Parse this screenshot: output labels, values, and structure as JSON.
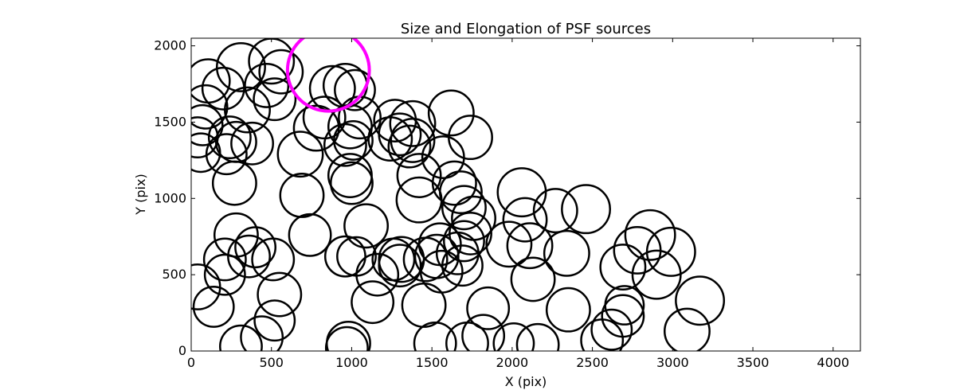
{
  "chart_data": {
    "type": "scatter",
    "title": "Size and Elongation of PSF sources",
    "xlabel": "X (pix)",
    "ylabel": "Y (pix)",
    "xlim": [
      0,
      4170
    ],
    "ylim": [
      0,
      2050
    ],
    "xticks": [
      0,
      500,
      1000,
      1500,
      2000,
      2500,
      3000,
      3500,
      4000
    ],
    "yticks": [
      0,
      500,
      1000,
      1500,
      2000
    ],
    "grid": false,
    "marker": "circle",
    "marker_color": "#000000",
    "highlight_color": "#ff00ff",
    "highlight": {
      "x": 855,
      "y": 1840,
      "radius": 255
    },
    "sources": [
      {
        "x": 105,
        "y": 1770,
        "r": 135
      },
      {
        "x": 310,
        "y": 1860,
        "r": 150
      },
      {
        "x": 500,
        "y": 1900,
        "r": 140
      },
      {
        "x": 560,
        "y": 1830,
        "r": 135
      },
      {
        "x": 200,
        "y": 1720,
        "r": 130
      },
      {
        "x": 470,
        "y": 1740,
        "r": 135
      },
      {
        "x": 520,
        "y": 1650,
        "r": 130
      },
      {
        "x": 350,
        "y": 1580,
        "r": 140
      },
      {
        "x": 90,
        "y": 1600,
        "r": 135
      },
      {
        "x": 40,
        "y": 1400,
        "r": 125
      },
      {
        "x": 60,
        "y": 1300,
        "r": 120
      },
      {
        "x": 70,
        "y": 1480,
        "r": 125
      },
      {
        "x": 240,
        "y": 1400,
        "r": 130
      },
      {
        "x": 280,
        "y": 1370,
        "r": 125
      },
      {
        "x": 380,
        "y": 1360,
        "r": 130
      },
      {
        "x": 220,
        "y": 1290,
        "r": 125
      },
      {
        "x": 270,
        "y": 1100,
        "r": 135
      },
      {
        "x": 680,
        "y": 1290,
        "r": 140
      },
      {
        "x": 690,
        "y": 1020,
        "r": 135
      },
      {
        "x": 740,
        "y": 760,
        "r": 130
      },
      {
        "x": 780,
        "y": 1460,
        "r": 140
      },
      {
        "x": 830,
        "y": 1530,
        "r": 130
      },
      {
        "x": 880,
        "y": 1720,
        "r": 140
      },
      {
        "x": 960,
        "y": 1740,
        "r": 135
      },
      {
        "x": 1020,
        "y": 1710,
        "r": 125
      },
      {
        "x": 990,
        "y": 1470,
        "r": 135
      },
      {
        "x": 1050,
        "y": 1530,
        "r": 130
      },
      {
        "x": 960,
        "y": 1350,
        "r": 130
      },
      {
        "x": 1010,
        "y": 1380,
        "r": 120
      },
      {
        "x": 990,
        "y": 1150,
        "r": 135
      },
      {
        "x": 1000,
        "y": 1100,
        "r": 130
      },
      {
        "x": 1090,
        "y": 820,
        "r": 135
      },
      {
        "x": 960,
        "y": 620,
        "r": 125
      },
      {
        "x": 1030,
        "y": 620,
        "r": 120
      },
      {
        "x": 1160,
        "y": 500,
        "r": 130
      },
      {
        "x": 1130,
        "y": 320,
        "r": 130
      },
      {
        "x": 980,
        "y": 50,
        "r": 135
      },
      {
        "x": 970,
        "y": 20,
        "r": 130
      },
      {
        "x": 1240,
        "y": 1390,
        "r": 135
      },
      {
        "x": 1270,
        "y": 1510,
        "r": 130
      },
      {
        "x": 1300,
        "y": 1420,
        "r": 130
      },
      {
        "x": 1380,
        "y": 1490,
        "r": 140
      },
      {
        "x": 1380,
        "y": 1380,
        "r": 135
      },
      {
        "x": 1360,
        "y": 1340,
        "r": 130
      },
      {
        "x": 1420,
        "y": 1150,
        "r": 135
      },
      {
        "x": 1420,
        "y": 990,
        "r": 140
      },
      {
        "x": 1310,
        "y": 600,
        "r": 140
      },
      {
        "x": 1260,
        "y": 600,
        "r": 130
      },
      {
        "x": 1300,
        "y": 560,
        "r": 130
      },
      {
        "x": 1460,
        "y": 600,
        "r": 135
      },
      {
        "x": 1450,
        "y": 300,
        "r": 135
      },
      {
        "x": 1530,
        "y": 620,
        "r": 135
      },
      {
        "x": 1550,
        "y": 700,
        "r": 130
      },
      {
        "x": 1560,
        "y": 520,
        "r": 130
      },
      {
        "x": 1520,
        "y": 50,
        "r": 130
      },
      {
        "x": 1620,
        "y": 1560,
        "r": 140
      },
      {
        "x": 1740,
        "y": 1400,
        "r": 135
      },
      {
        "x": 1570,
        "y": 1270,
        "r": 130
      },
      {
        "x": 1640,
        "y": 1100,
        "r": 135
      },
      {
        "x": 1680,
        "y": 1040,
        "r": 130
      },
      {
        "x": 1700,
        "y": 940,
        "r": 135
      },
      {
        "x": 1760,
        "y": 870,
        "r": 135
      },
      {
        "x": 1740,
        "y": 770,
        "r": 130
      },
      {
        "x": 1660,
        "y": 640,
        "r": 130
      },
      {
        "x": 1700,
        "y": 720,
        "r": 125
      },
      {
        "x": 1690,
        "y": 560,
        "r": 125
      },
      {
        "x": 1850,
        "y": 280,
        "r": 130
      },
      {
        "x": 1820,
        "y": 100,
        "r": 130
      },
      {
        "x": 1720,
        "y": 50,
        "r": 130
      },
      {
        "x": 2010,
        "y": 50,
        "r": 125
      },
      {
        "x": 2160,
        "y": 40,
        "r": 130
      },
      {
        "x": 2060,
        "y": 1040,
        "r": 150
      },
      {
        "x": 2080,
        "y": 860,
        "r": 135
      },
      {
        "x": 1980,
        "y": 700,
        "r": 140
      },
      {
        "x": 2110,
        "y": 690,
        "r": 140
      },
      {
        "x": 2130,
        "y": 470,
        "r": 135
      },
      {
        "x": 2270,
        "y": 920,
        "r": 135
      },
      {
        "x": 2340,
        "y": 640,
        "r": 140
      },
      {
        "x": 2350,
        "y": 270,
        "r": 135
      },
      {
        "x": 2460,
        "y": 930,
        "r": 150
      },
      {
        "x": 2560,
        "y": 70,
        "r": 130
      },
      {
        "x": 2620,
        "y": 140,
        "r": 125
      },
      {
        "x": 2690,
        "y": 230,
        "r": 130
      },
      {
        "x": 2700,
        "y": 300,
        "r": 120
      },
      {
        "x": 2690,
        "y": 550,
        "r": 140
      },
      {
        "x": 2780,
        "y": 660,
        "r": 145
      },
      {
        "x": 2860,
        "y": 760,
        "r": 155
      },
      {
        "x": 2900,
        "y": 500,
        "r": 150
      },
      {
        "x": 2990,
        "y": 650,
        "r": 150
      },
      {
        "x": 3090,
        "y": 130,
        "r": 140
      },
      {
        "x": 3170,
        "y": 330,
        "r": 150
      },
      {
        "x": 40,
        "y": 420,
        "r": 140
      },
      {
        "x": 140,
        "y": 290,
        "r": 125
      },
      {
        "x": 210,
        "y": 600,
        "r": 130
      },
      {
        "x": 210,
        "y": 500,
        "r": 125
      },
      {
        "x": 280,
        "y": 760,
        "r": 135
      },
      {
        "x": 360,
        "y": 620,
        "r": 130
      },
      {
        "x": 400,
        "y": 680,
        "r": 125
      },
      {
        "x": 510,
        "y": 600,
        "r": 130
      },
      {
        "x": 550,
        "y": 370,
        "r": 135
      },
      {
        "x": 520,
        "y": 200,
        "r": 125
      },
      {
        "x": 440,
        "y": 90,
        "r": 130
      },
      {
        "x": 310,
        "y": 30,
        "r": 130
      }
    ]
  }
}
